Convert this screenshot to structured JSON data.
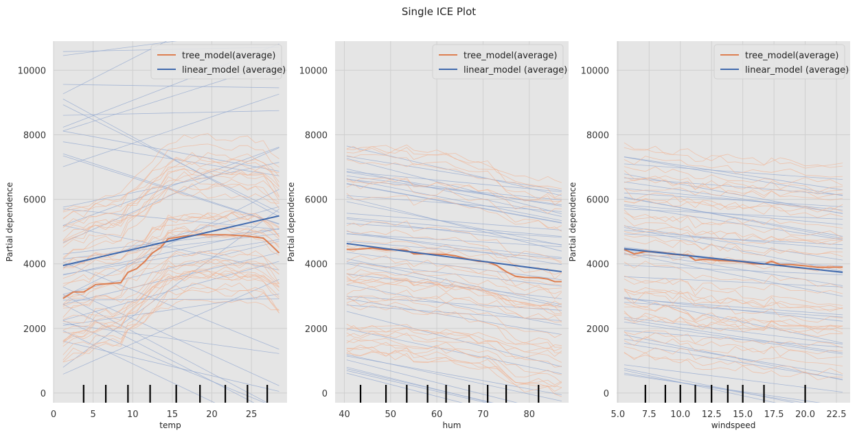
{
  "figure": {
    "title": "Single ICE Plot"
  },
  "colors": {
    "tree": "#dd7e50",
    "linear": "#3f69ad",
    "tree_ice": "#f0b597",
    "linear_ice": "#8fa5cf",
    "panel_bg": "#e5e5e5",
    "grid": "#cfcfcf",
    "rug": "#000000"
  },
  "chart_data": [
    {
      "type": "line",
      "xlabel": "temp",
      "ylabel": "Partial dependence",
      "xlim": [
        0,
        29.5
      ],
      "ylim": [
        -300,
        10900
      ],
      "xticks": [
        0,
        5,
        10,
        15,
        20,
        25
      ],
      "xtick_labels": [
        "0",
        "5",
        "10",
        "15",
        "20",
        "25"
      ],
      "yticks": [
        0,
        2000,
        4000,
        6000,
        8000,
        10000
      ],
      "ytick_labels": [
        "0",
        "2000",
        "4000",
        "6000",
        "8000",
        "10000"
      ],
      "legend_position": "top-right",
      "grid": true,
      "rug": [
        3.8,
        6.6,
        9.4,
        12.2,
        15.5,
        18.5,
        21.7,
        24.5,
        27.0
      ],
      "series": [
        {
          "name": "tree_model(average)",
          "color_key": "tree",
          "x": [
            1.2,
            2.5,
            3.8,
            4.5,
            5.3,
            6.6,
            7.5,
            8.5,
            9.4,
            10.5,
            11.5,
            12.5,
            13.5,
            14.5,
            15.5,
            16.5,
            17.5,
            18.5,
            19.5,
            20.5,
            21.7,
            22.5,
            23.5,
            24.5,
            25.5,
            26.5,
            27.5,
            28.5
          ],
          "y": [
            2930,
            3130,
            3130,
            3230,
            3360,
            3380,
            3400,
            3420,
            3740,
            3850,
            4070,
            4340,
            4500,
            4780,
            4820,
            4860,
            4880,
            4900,
            4900,
            4900,
            4900,
            4890,
            4880,
            4860,
            4830,
            4800,
            4580,
            4340
          ]
        },
        {
          "name": "linear_model (average)",
          "color_key": "linear",
          "x": [
            1.2,
            28.5
          ],
          "y": [
            3950,
            5490
          ]
        }
      ]
    },
    {
      "type": "line",
      "xlabel": "hum",
      "ylabel": "Partial dependence",
      "xlim": [
        38,
        88.5
      ],
      "ylim": [
        -300,
        10900
      ],
      "xticks": [
        40,
        50,
        60,
        70,
        80
      ],
      "xtick_labels": [
        "40",
        "50",
        "60",
        "70",
        "80"
      ],
      "yticks": [
        0,
        2000,
        4000,
        6000,
        8000,
        10000
      ],
      "ytick_labels": [
        "0",
        "2000",
        "4000",
        "6000",
        "8000",
        "10000"
      ],
      "legend_position": "top-right",
      "grid": true,
      "rug": [
        43.5,
        49.0,
        53.5,
        58.0,
        62.0,
        67.0,
        71.0,
        75.0,
        82.0
      ],
      "series": [
        {
          "name": "tree_model(average)",
          "color_key": "tree",
          "x": [
            40.5,
            42,
            43.5,
            46,
            49,
            51,
            53.5,
            55,
            58,
            60,
            62,
            64,
            67,
            69,
            71,
            73,
            75,
            77,
            79,
            82,
            84,
            85.5,
            87
          ],
          "y": [
            4450,
            4450,
            4460,
            4490,
            4430,
            4440,
            4420,
            4310,
            4310,
            4300,
            4290,
            4250,
            4140,
            4080,
            4060,
            3950,
            3760,
            3620,
            3580,
            3570,
            3530,
            3450,
            3450
          ]
        },
        {
          "name": "linear_model (average)",
          "color_key": "linear",
          "x": [
            40.5,
            87
          ],
          "y": [
            4630,
            3760
          ]
        }
      ]
    },
    {
      "type": "line",
      "xlabel": "windspeed",
      "ylabel": "Partial dependence",
      "xlim": [
        4.9,
        23.6
      ],
      "ylim": [
        -300,
        10900
      ],
      "xticks": [
        5,
        7.5,
        10,
        12.5,
        15,
        17.5,
        20,
        22.5
      ],
      "xtick_labels": [
        "5.0",
        "7.5",
        "10.0",
        "12.5",
        "15.0",
        "17.5",
        "20.0",
        "22.5"
      ],
      "yticks": [
        0,
        2000,
        4000,
        6000,
        8000,
        10000
      ],
      "ytick_labels": [
        "0",
        "2000",
        "4000",
        "6000",
        "8000",
        "10000"
      ],
      "legend_position": "top-right",
      "grid": true,
      "rug": [
        7.2,
        8.8,
        10.0,
        11.2,
        12.5,
        13.8,
        15.0,
        16.7,
        20.0
      ],
      "series": [
        {
          "name": "tree_model(average)",
          "color_key": "tree",
          "x": [
            5.5,
            6.3,
            7.2,
            8.0,
            8.8,
            9.4,
            10.0,
            10.6,
            11.2,
            11.8,
            12.5,
            13.2,
            13.8,
            14.4,
            15.0,
            15.8,
            16.7,
            17.3,
            18.0,
            18.8,
            20.0,
            21.0,
            22.0,
            23.0
          ],
          "y": [
            4450,
            4310,
            4380,
            4370,
            4340,
            4290,
            4290,
            4270,
            4110,
            4140,
            4130,
            4100,
            4090,
            4080,
            4060,
            4010,
            3990,
            4080,
            3980,
            3980,
            3940,
            3890,
            3900,
            3900
          ]
        },
        {
          "name": "linear_model (average)",
          "color_key": "linear",
          "x": [
            5.5,
            23.0
          ],
          "y": [
            4470,
            3740
          ]
        }
      ]
    }
  ]
}
